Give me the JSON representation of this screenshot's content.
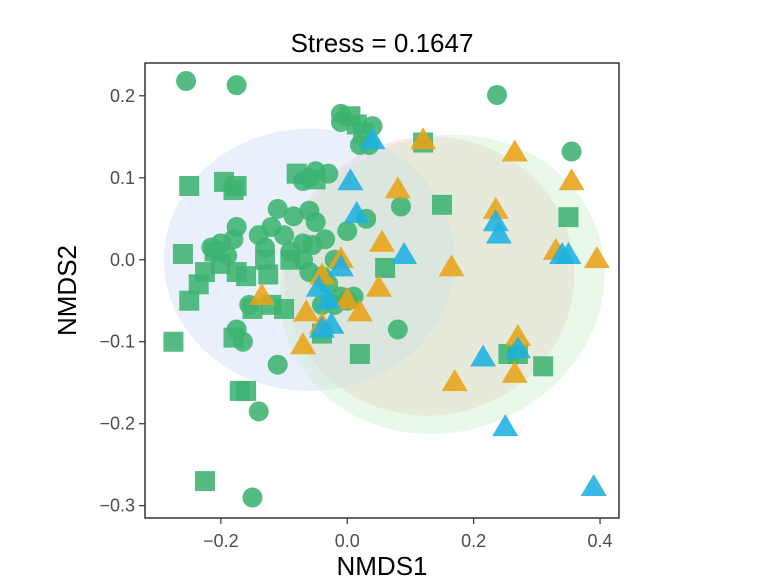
{
  "chart_data": {
    "type": "scatter",
    "title": "Stress = 0.1647",
    "xlabel": "NMDS1",
    "ylabel": "NMDS2",
    "xlim": [
      -0.32,
      0.43
    ],
    "ylim": [
      -0.315,
      0.24
    ],
    "xticks": [
      -0.2,
      0.0,
      0.2,
      0.4
    ],
    "xtick_labels": [
      "−0.2",
      "0.0",
      "0.2",
      "0.4"
    ],
    "yticks": [
      0.2,
      0.1,
      0.0,
      -0.1,
      -0.2,
      -0.3
    ],
    "ytick_labels": [
      "0.2",
      "0.1",
      "0.0",
      "−0.1",
      "−0.2",
      "−0.3"
    ],
    "grid": false,
    "legend": "none",
    "colors": {
      "green": "#3cb371",
      "blue": "#1eb0e0",
      "orange": "#e8a317"
    },
    "ellipses": [
      {
        "color": "#f4c4c0",
        "cx": 0.13,
        "cy": -0.02,
        "rx": 0.23,
        "ry": 0.17,
        "angle": -10
      },
      {
        "color": "#c8d8f4",
        "cx": -0.06,
        "cy": 0.0,
        "rx": 0.23,
        "ry": 0.16,
        "angle": 0
      },
      {
        "color": "#c8ecc8",
        "cx": 0.15,
        "cy": -0.03,
        "rx": 0.26,
        "ry": 0.18,
        "angle": -20
      }
    ],
    "series": [
      {
        "color": "green",
        "marker": "circle",
        "points": [
          [
            -0.255,
            0.218
          ],
          [
            -0.175,
            0.213
          ],
          [
            0.237,
            0.201
          ],
          [
            0.355,
            0.132
          ],
          [
            -0.01,
            0.178
          ],
          [
            -0.01,
            0.168
          ],
          [
            0.04,
            0.163
          ],
          [
            0.02,
            0.14
          ],
          [
            0.035,
            0.14
          ],
          [
            -0.05,
            0.108
          ],
          [
            -0.06,
            0.1
          ],
          [
            -0.03,
            0.105
          ],
          [
            -0.07,
            0.096
          ],
          [
            -0.11,
            0.062
          ],
          [
            -0.085,
            0.053
          ],
          [
            -0.06,
            0.06
          ],
          [
            -0.05,
            0.046
          ],
          [
            -0.07,
            0.02
          ],
          [
            -0.12,
            0.04
          ],
          [
            -0.175,
            0.04
          ],
          [
            -0.14,
            0.03
          ],
          [
            -0.1,
            0.03
          ],
          [
            -0.18,
            0.025
          ],
          [
            -0.2,
            0.02
          ],
          [
            -0.215,
            0.015
          ],
          [
            -0.19,
            0.005
          ],
          [
            -0.13,
            0.015
          ],
          [
            -0.09,
            0.01
          ],
          [
            -0.07,
            0.0
          ],
          [
            -0.06,
            -0.015
          ],
          [
            -0.04,
            -0.02
          ],
          [
            -0.02,
            0.0
          ],
          [
            -0.035,
            0.025
          ],
          [
            0.0,
            0.035
          ],
          [
            0.03,
            0.05
          ],
          [
            0.085,
            0.065
          ],
          [
            -0.03,
            -0.03
          ],
          [
            -0.01,
            -0.045
          ],
          [
            0.0,
            -0.05
          ],
          [
            0.01,
            -0.045
          ],
          [
            -0.02,
            -0.055
          ],
          [
            -0.04,
            -0.055
          ],
          [
            0.08,
            -0.085
          ],
          [
            -0.175,
            -0.085
          ],
          [
            -0.165,
            -0.1
          ],
          [
            -0.11,
            -0.128
          ],
          [
            -0.14,
            -0.185
          ],
          [
            -0.15,
            -0.29
          ],
          [
            -0.055,
            0.018
          ],
          [
            -0.155,
            -0.055
          ]
        ]
      },
      {
        "color": "green",
        "marker": "square",
        "points": [
          [
            0.005,
            0.175
          ],
          [
            0.015,
            0.165
          ],
          [
            0.025,
            0.155
          ],
          [
            0.12,
            0.143
          ],
          [
            -0.25,
            0.09
          ],
          [
            -0.195,
            0.095
          ],
          [
            -0.175,
            0.09
          ],
          [
            -0.18,
            0.085
          ],
          [
            -0.08,
            0.105
          ],
          [
            -0.05,
            0.098
          ],
          [
            0.15,
            0.067
          ],
          [
            0.35,
            0.052
          ],
          [
            -0.26,
            0.007
          ],
          [
            -0.21,
            0.01
          ],
          [
            -0.2,
            -0.005
          ],
          [
            -0.225,
            -0.015
          ],
          [
            -0.235,
            -0.03
          ],
          [
            -0.25,
            -0.05
          ],
          [
            -0.16,
            -0.02
          ],
          [
            -0.175,
            -0.015
          ],
          [
            -0.125,
            -0.018
          ],
          [
            -0.13,
            0.0
          ],
          [
            -0.15,
            -0.06
          ],
          [
            -0.12,
            -0.055
          ],
          [
            -0.1,
            -0.06
          ],
          [
            0.06,
            -0.01
          ],
          [
            -0.275,
            -0.1
          ],
          [
            -0.18,
            -0.095
          ],
          [
            -0.04,
            -0.09
          ],
          [
            0.02,
            -0.115
          ],
          [
            0.255,
            -0.115
          ],
          [
            0.27,
            -0.115
          ],
          [
            0.31,
            -0.13
          ],
          [
            -0.17,
            -0.16
          ],
          [
            -0.16,
            -0.16
          ],
          [
            -0.225,
            -0.27
          ],
          [
            -0.09,
            0.0
          ]
        ]
      },
      {
        "color": "orange",
        "marker": "triangle",
        "points": [
          [
            0.12,
            0.145
          ],
          [
            0.265,
            0.13
          ],
          [
            0.355,
            0.095
          ],
          [
            0.08,
            0.085
          ],
          [
            0.235,
            0.06
          ],
          [
            0.055,
            0.02
          ],
          [
            0.165,
            -0.01
          ],
          [
            0.33,
            0.01
          ],
          [
            0.395,
            0.0
          ],
          [
            -0.01,
            0.0
          ],
          [
            -0.04,
            -0.02
          ],
          [
            -0.135,
            -0.045
          ],
          [
            0.05,
            -0.035
          ],
          [
            0.0,
            -0.05
          ],
          [
            0.02,
            -0.065
          ],
          [
            -0.065,
            -0.065
          ],
          [
            -0.07,
            -0.105
          ],
          [
            -0.04,
            -0.08
          ],
          [
            0.27,
            -0.095
          ],
          [
            0.17,
            -0.15
          ],
          [
            0.265,
            -0.14
          ]
        ]
      },
      {
        "color": "blue",
        "marker": "triangle",
        "points": [
          [
            0.04,
            0.145
          ],
          [
            0.005,
            0.095
          ],
          [
            0.015,
            0.055
          ],
          [
            0.235,
            0.045
          ],
          [
            0.24,
            0.03
          ],
          [
            0.09,
            0.005
          ],
          [
            0.34,
            0.005
          ],
          [
            0.35,
            0.005
          ],
          [
            -0.01,
            -0.01
          ],
          [
            -0.045,
            -0.035
          ],
          [
            -0.03,
            -0.05
          ],
          [
            -0.025,
            -0.08
          ],
          [
            -0.04,
            -0.085
          ],
          [
            0.215,
            -0.12
          ],
          [
            0.27,
            -0.11
          ],
          [
            0.25,
            -0.205
          ],
          [
            0.39,
            -0.278
          ]
        ]
      }
    ]
  }
}
